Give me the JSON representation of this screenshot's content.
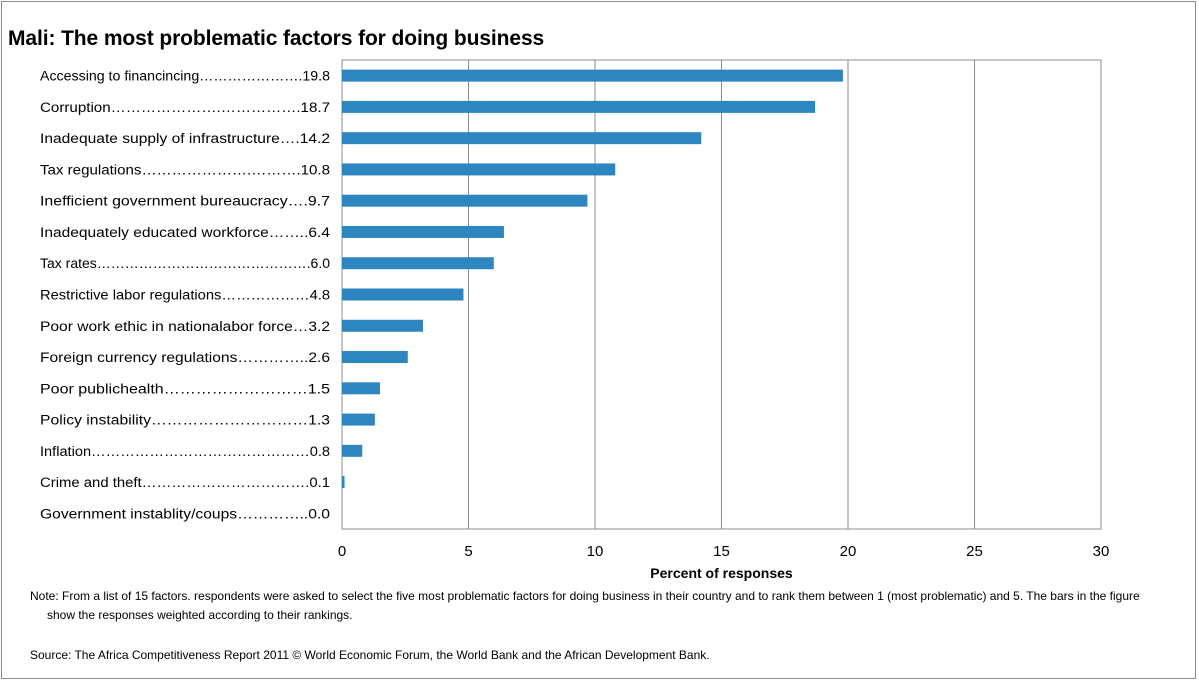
{
  "header": {
    "title": "Mali: The most problematic factors for doing business"
  },
  "footer": {
    "note": "Note: From a list of 15 factors. respondents were asked to select the five most problematic factors for doing business in their country and to rank them between 1 (most problematic) and 5. The bars in the figure show the responses weighted according to their rankings.",
    "source": "Source: The Africa Competitiveness Report 2011 © World Economic Forum, the World Bank and the African Development Bank."
  },
  "colors": {
    "bar": "#2e86c1",
    "grid": "#8c8c8c",
    "frame": "#8c8c8c"
  },
  "chart_data": {
    "type": "bar",
    "orientation": "horizontal",
    "title": "Mali: The most problematic factors for doing business",
    "xlabel": "Percent of responses",
    "ylabel": "",
    "xlim": [
      0,
      30
    ],
    "xticks": [
      0,
      5,
      10,
      15,
      20,
      25,
      30
    ],
    "grid": true,
    "categories": [
      "Accessing to financincing………………….19.8",
      "Corruption………………….…………….18.7",
      "Inadequate supply of infrastructure….14.2",
      "Tax regulations………………….……….10.8",
      "Inefficient government bureaucracy….9.7",
      "Inadequately educated workforce……..6.4",
      "Tax rates……………………………………….6.0",
      "Restrictive labor regulations………………4.8",
      "Poor work ethic in nationalabor force…3.2",
      "Foreign currency regulations…………..2.6",
      "Poor publichealth………………………1.5",
      "Policy instability…………………………1.3",
      "Inflation………………………………………0.8",
      "Crime and theft…………………………….0.1",
      "Government instablity/coups…………..0.0"
    ],
    "values": [
      19.8,
      18.7,
      14.2,
      10.8,
      9.7,
      6.4,
      6.0,
      4.8,
      3.2,
      2.6,
      1.5,
      1.3,
      0.8,
      0.1,
      0.0
    ]
  }
}
